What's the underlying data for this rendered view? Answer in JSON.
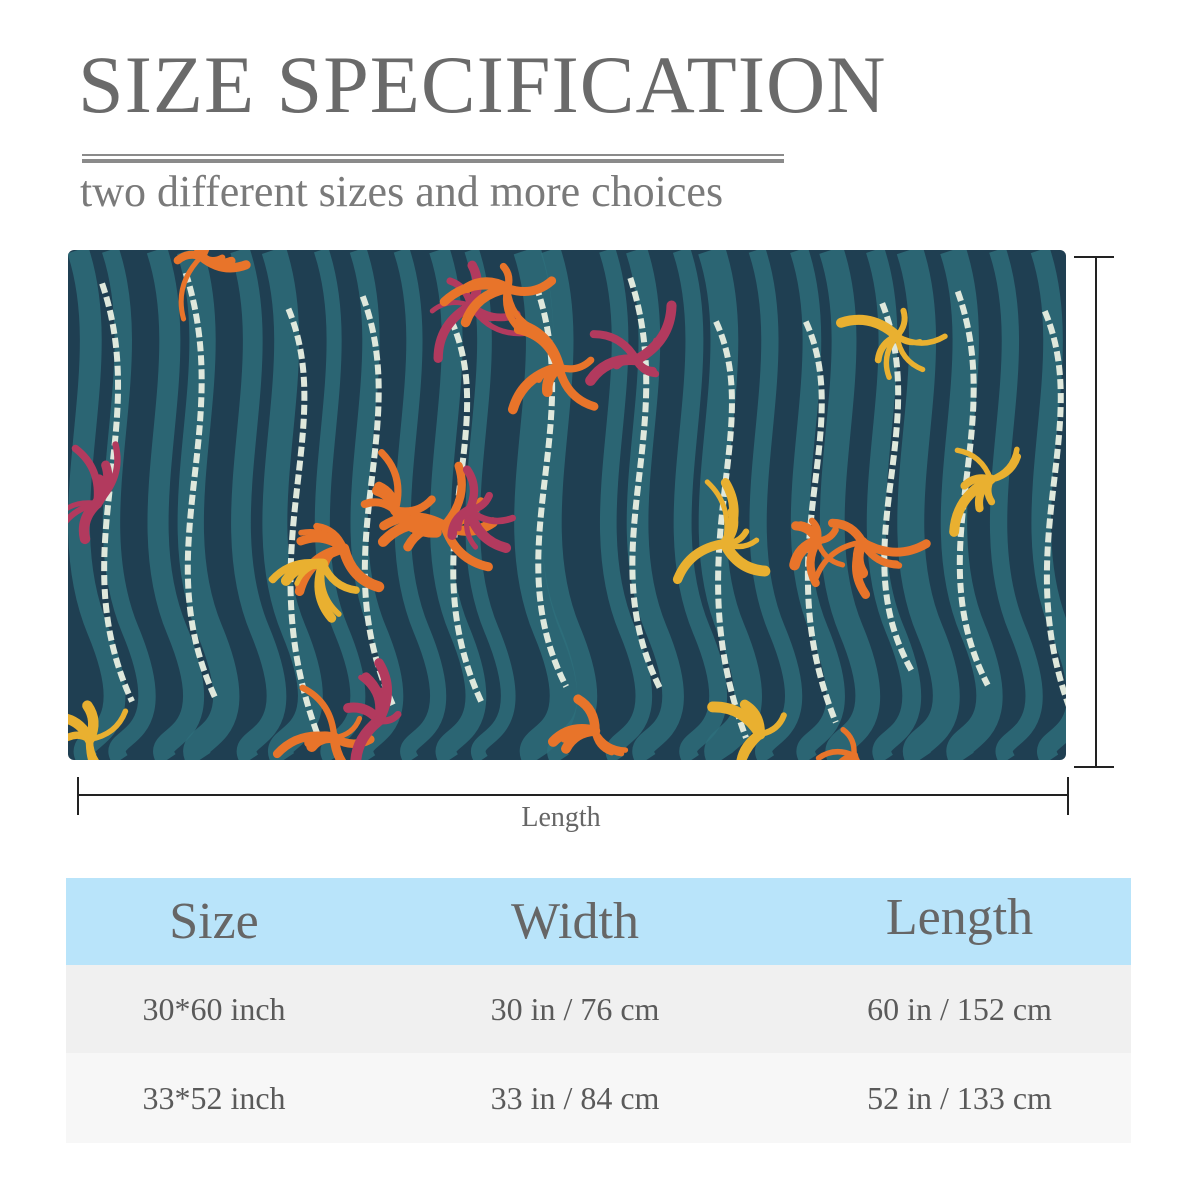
{
  "header": {
    "title": "SIZE SPECIFICATION",
    "subtitle": "two different sizes and more choices"
  },
  "diagram": {
    "length_label": "Length",
    "pattern_colors": {
      "deep": "#1f3f52",
      "teal": "#2e6f7c",
      "foam": "#dfe8dc",
      "orange": "#e8742a",
      "gold": "#e9b030",
      "magenta": "#b23a5e"
    }
  },
  "table": {
    "header_color": "#b9e4fa",
    "columns": [
      "Size",
      "Width",
      "Length"
    ],
    "rows": [
      [
        "30*60 inch",
        "30 in / 76 cm",
        "60 in / 152 cm"
      ],
      [
        "33*52 inch",
        "33 in / 84 cm",
        "52 in / 133 cm"
      ]
    ]
  }
}
